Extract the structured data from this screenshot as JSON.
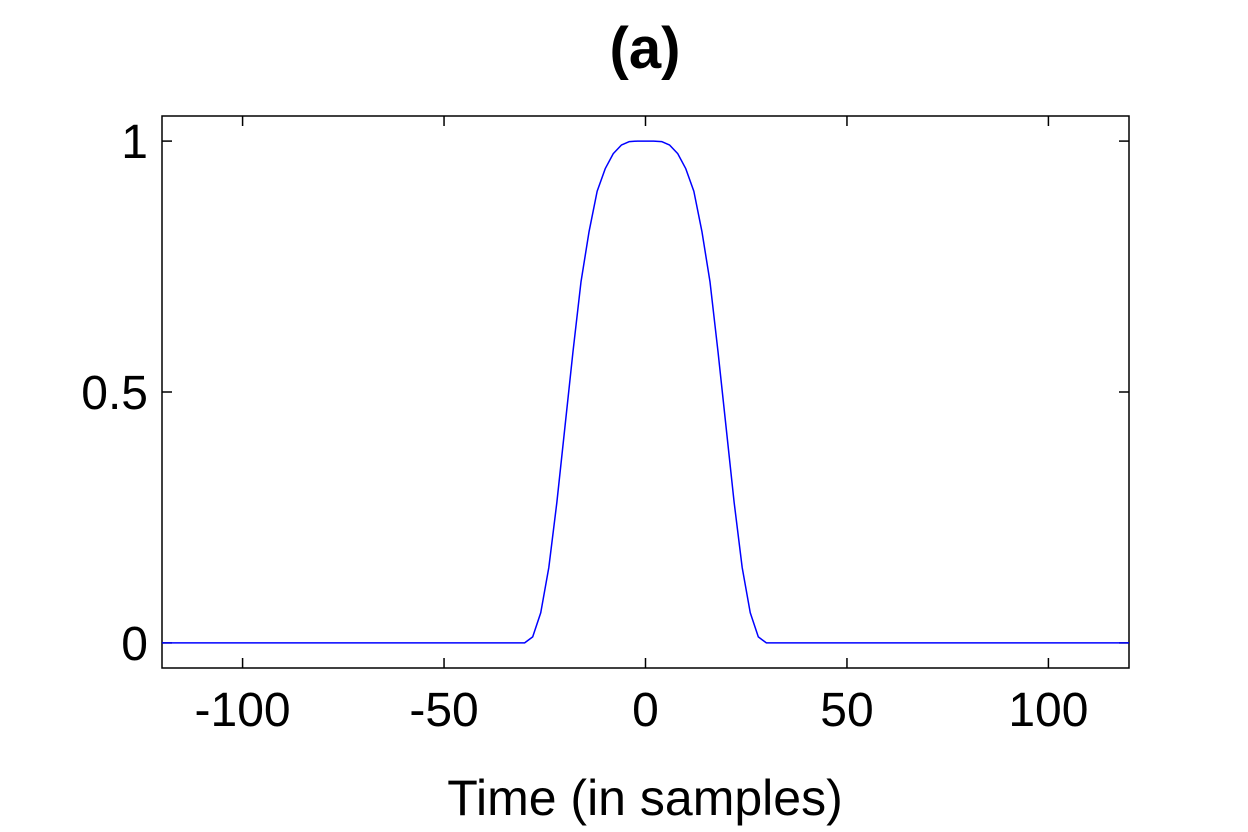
{
  "chart_data": {
    "type": "line",
    "title": "(a)",
    "xlabel": "Time (in samples)",
    "ylabel": "",
    "xlim": [
      -120,
      120
    ],
    "ylim": [
      -0.05,
      1.05
    ],
    "xticks": [
      -100,
      -50,
      0,
      50,
      100
    ],
    "yticks": [
      0,
      0.5,
      1
    ],
    "xtick_labels": [
      "-100",
      "-50",
      "0",
      "50",
      "100"
    ],
    "ytick_labels": [
      "0",
      "0.5",
      "1"
    ],
    "grid": false,
    "legend": "none",
    "series": [
      {
        "color": "#0000ff",
        "x": [
          -120,
          -100,
          -50,
          -30,
          -28,
          -26,
          -24,
          -22,
          -20,
          -18,
          -16,
          -14,
          -12,
          -10,
          -8,
          -6,
          -4,
          -2,
          0,
          2,
          4,
          6,
          8,
          10,
          12,
          14,
          16,
          18,
          20,
          22,
          24,
          26,
          28,
          30,
          50,
          100,
          120
        ],
        "y": [
          0,
          0,
          0,
          0,
          0.012,
          0.06,
          0.15,
          0.28,
          0.43,
          0.58,
          0.72,
          0.82,
          0.9,
          0.945,
          0.975,
          0.992,
          0.999,
          1.0,
          1.0,
          1.0,
          0.999,
          0.992,
          0.975,
          0.945,
          0.9,
          0.82,
          0.72,
          0.58,
          0.43,
          0.28,
          0.15,
          0.06,
          0.012,
          0,
          0,
          0,
          0
        ]
      }
    ]
  }
}
